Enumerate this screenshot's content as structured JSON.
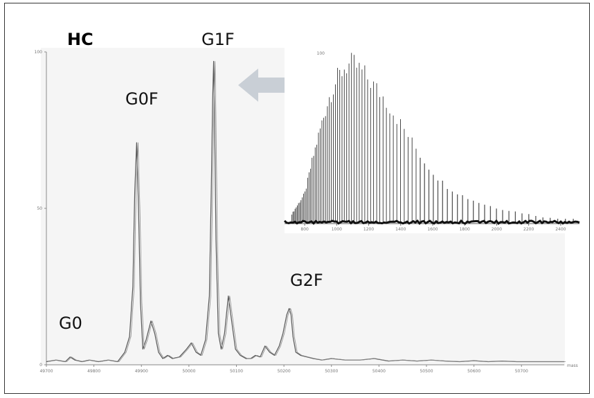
{
  "chart_data": [
    {
      "type": "line",
      "panel_label": "HC",
      "xlabel": "",
      "ylabel": "",
      "ylim": [
        0,
        100
      ],
      "y_ticks": [
        "0",
        "50",
        "100"
      ],
      "x_ticks": [
        "49700",
        "49800",
        "49900",
        "50000",
        "50100",
        "50200",
        "50300",
        "50400",
        "50500",
        "50600",
        "50700"
      ],
      "x_unit": "mass",
      "xlim": [
        49700,
        50790
      ],
      "peaks": [
        {
          "label": "G0",
          "x": 49745,
          "y": 2
        },
        {
          "label": "G0F",
          "x": 49890,
          "y": 71
        },
        {
          "label": "G1F",
          "x": 50052,
          "y": 97
        },
        {
          "label": "G2F",
          "x": 50215,
          "y": 18
        }
      ],
      "series": [
        {
          "x": [
            49700,
            49720,
            49740,
            49750,
            49760,
            49775,
            49790,
            49810,
            49830,
            49850,
            49865,
            49875,
            49882,
            49886,
            49890,
            49894,
            49898,
            49903,
            49910,
            49920,
            49928,
            49936,
            49945,
            49955,
            49965,
            49980,
            49995,
            50005,
            50015,
            50025,
            50035,
            50043,
            50047,
            50050,
            50052,
            50054,
            50057,
            50062,
            50068,
            50075,
            50083,
            50090,
            50098,
            50108,
            50120,
            50130,
            50140,
            50150,
            50160,
            50170,
            50180,
            50190,
            50198,
            50206,
            50211,
            50215,
            50219,
            50225,
            50235,
            50248,
            50262,
            50280,
            50300,
            50330,
            50360,
            50390,
            50420,
            50450,
            50480,
            50510,
            50540,
            50570,
            50600,
            50630,
            50660,
            50690,
            50720,
            50750,
            50790
          ],
          "values": [
            1,
            1.5,
            1,
            2.5,
            1.5,
            1,
            1.5,
            1,
            1.5,
            1,
            4,
            9,
            25,
            55,
            71,
            50,
            20,
            5,
            8,
            14,
            10,
            4,
            2,
            3,
            2,
            2.5,
            5,
            7,
            4,
            3,
            8,
            22,
            55,
            85,
            97,
            80,
            40,
            10,
            5,
            10,
            22,
            14,
            5,
            3,
            2,
            2,
            3,
            2.5,
            6,
            4,
            3,
            6,
            10,
            16,
            18,
            16,
            9,
            4,
            3,
            2.5,
            2,
            1.5,
            2,
            1.5,
            1.5,
            2,
            1.2,
            1.5,
            1.2,
            1.5,
            1.2,
            1,
            1.3,
            1,
            1.2,
            1,
            1,
            1,
            1
          ]
        }
      ]
    },
    {
      "type": "line",
      "title": "",
      "xlabel": "",
      "ylabel": "",
      "ylim": [
        0,
        100
      ],
      "y_ticks": [
        "100"
      ],
      "x_ticks": [
        "800",
        "1000",
        "1200",
        "1400",
        "1600",
        "1800",
        "2000",
        "2200",
        "2400"
      ],
      "xlim": [
        700,
        2500
      ],
      "series": [
        {
          "x": [
            700,
            800,
            850,
            900,
            950,
            1000,
            1050,
            1100,
            1150,
            1200,
            1250,
            1300,
            1350,
            1400,
            1450,
            1500,
            1550,
            1600,
            1650,
            1700,
            1800,
            1900,
            2000,
            2100,
            2200,
            2300,
            2400,
            2500
          ],
          "values": [
            2,
            18,
            40,
            60,
            78,
            90,
            98,
            100,
            96,
            90,
            84,
            78,
            70,
            62,
            54,
            46,
            38,
            32,
            26,
            22,
            16,
            12,
            9,
            7,
            5,
            3,
            2,
            2
          ]
        }
      ]
    }
  ]
}
